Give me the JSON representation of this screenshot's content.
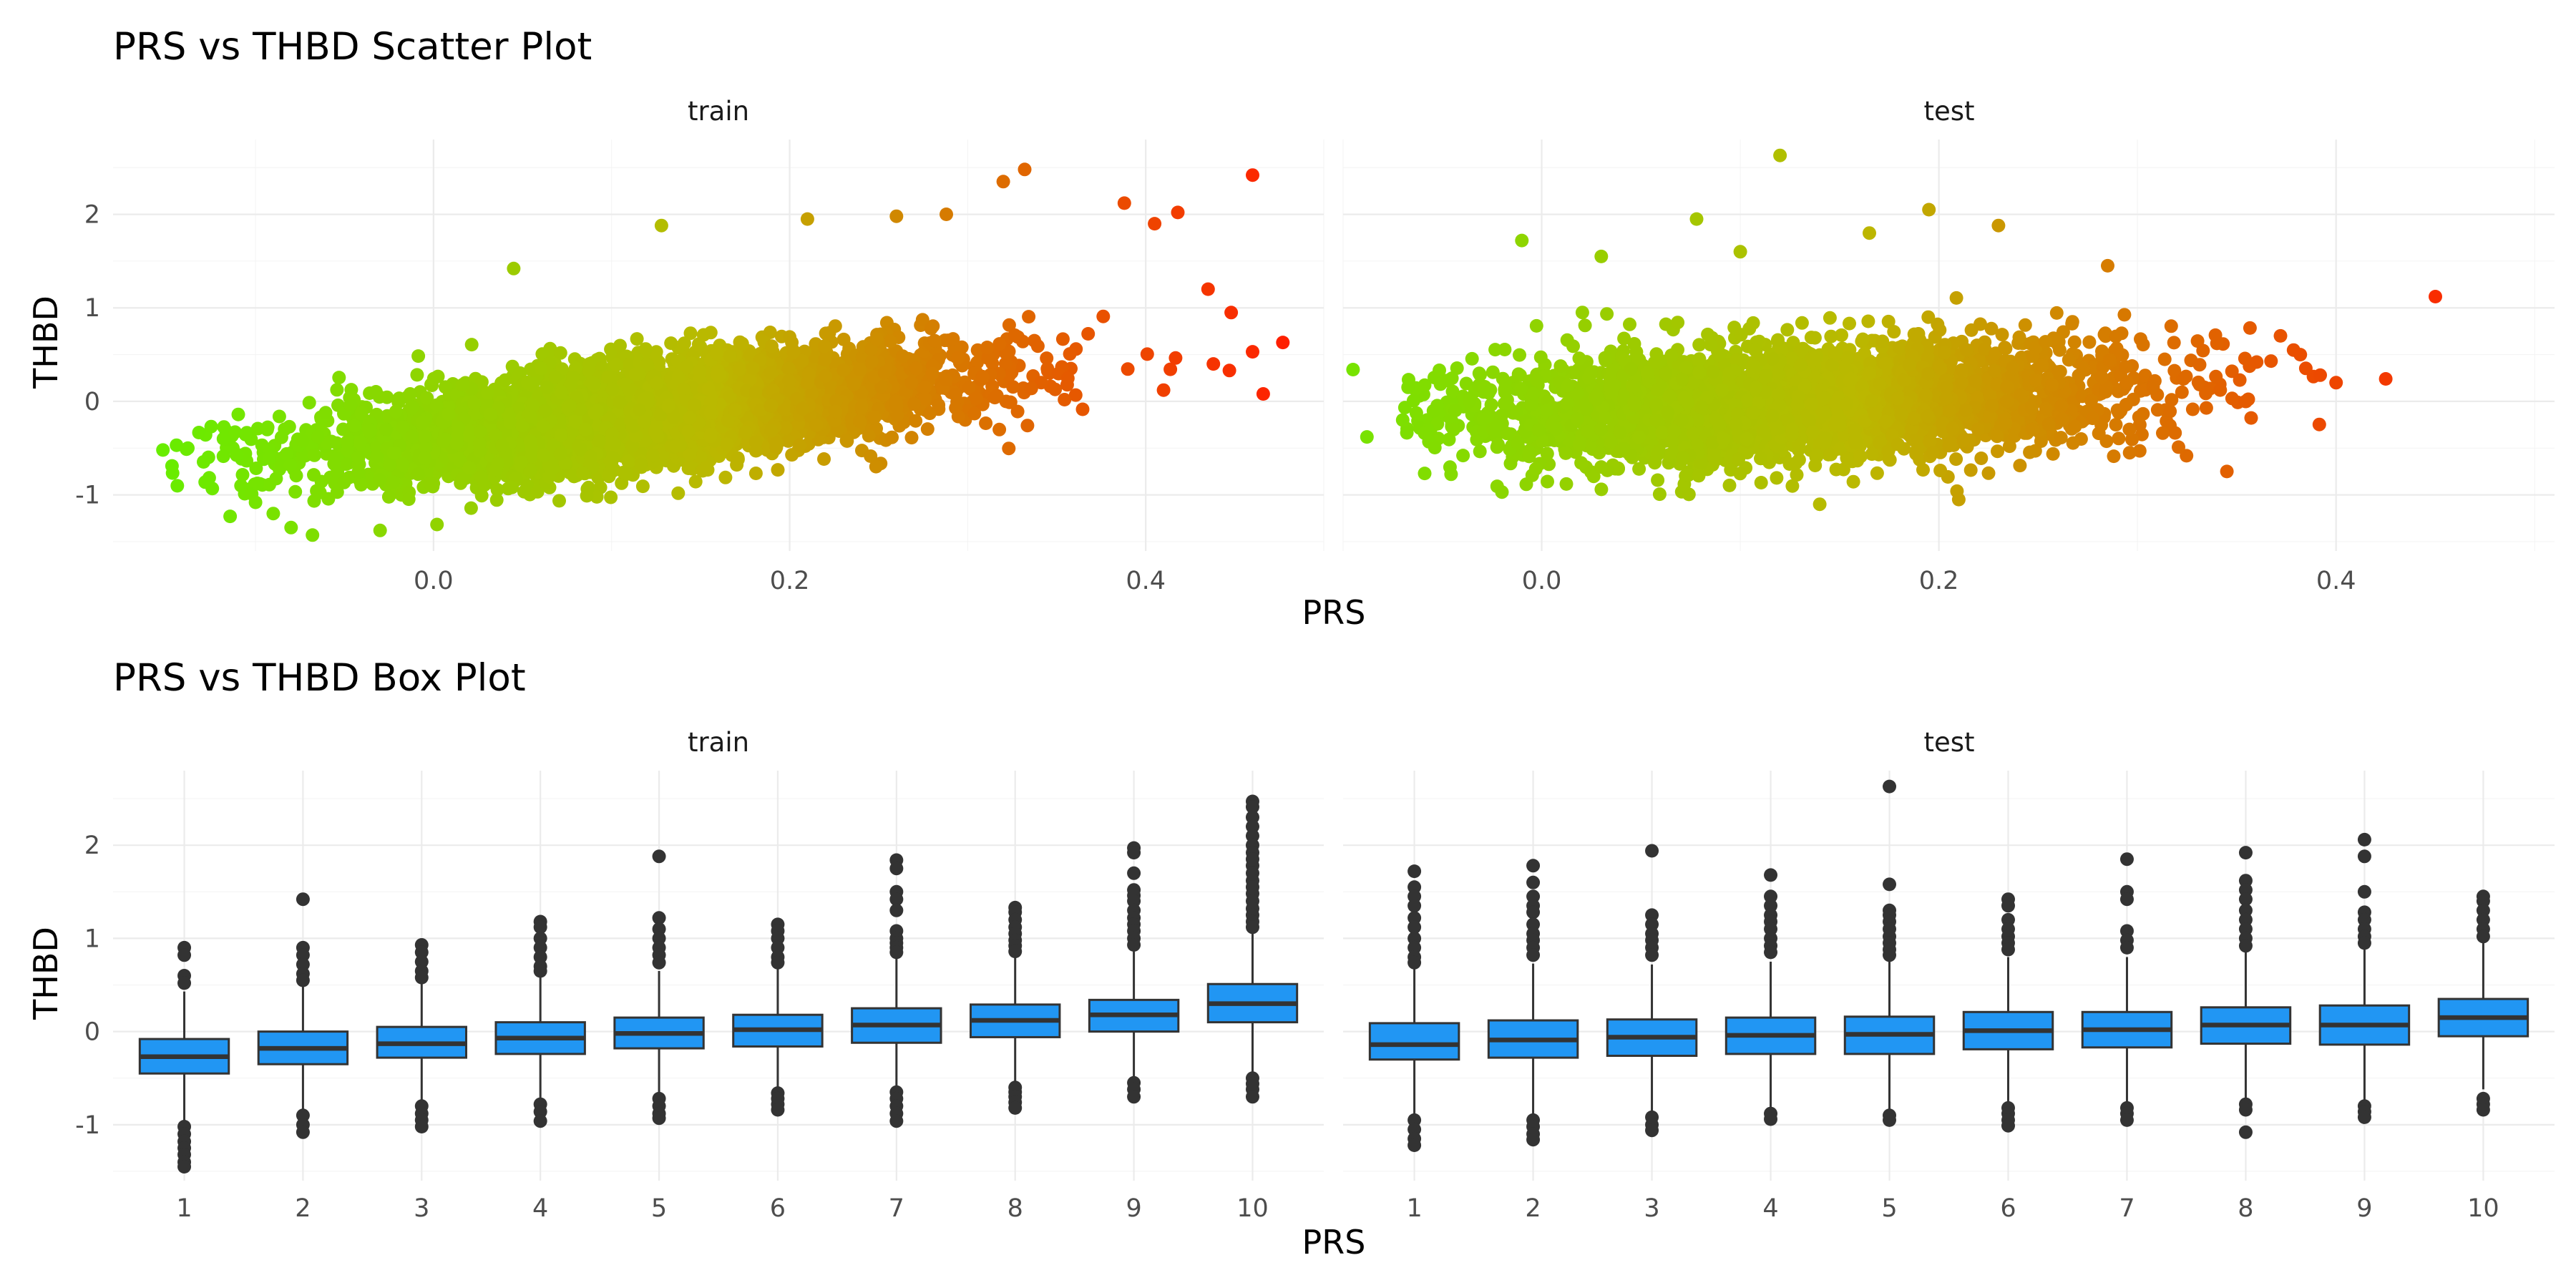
{
  "chart_data": [
    {
      "type": "scatter",
      "title": "PRS vs THBD Scatter Plot",
      "xlabel": "PRS",
      "ylabel": "THBD",
      "facets": [
        "train",
        "test"
      ],
      "facet_xlim": [
        [
          -0.18,
          0.5
        ],
        [
          -0.1,
          0.51
        ]
      ],
      "ylim": [
        -1.6,
        2.8
      ],
      "x_ticks": [
        0.0,
        0.2,
        0.4
      ],
      "x_tick_labels": [
        "0.0",
        "0.2",
        "0.4"
      ],
      "y_ticks": [
        -1,
        0,
        1,
        2
      ],
      "y_tick_labels": [
        "-1",
        "0",
        "1",
        "2"
      ],
      "color_scale": {
        "low": "#66ee00",
        "mid": "#bbb800",
        "high": "#ff1f00",
        "mapped_to": "PRS"
      },
      "grid": true,
      "legend": "none",
      "series": [
        {
          "name": "train",
          "bulk": {
            "x_mean": 0.12,
            "x_sd": 0.085,
            "slope": 2.1,
            "intercept": -0.38,
            "resid_sd": 0.26,
            "n": 5200
          },
          "outliers": [
            {
              "x": -0.152,
              "y": -0.52
            },
            {
              "x": -0.138,
              "y": -0.5
            },
            {
              "x": -0.118,
              "y": -0.4
            },
            {
              "x": -0.1,
              "y": -1.08
            },
            {
              "x": -0.09,
              "y": -1.2
            },
            {
              "x": -0.08,
              "y": -1.35
            },
            {
              "x": -0.068,
              "y": -1.43
            },
            {
              "x": -0.03,
              "y": -1.38
            },
            {
              "x": 0.045,
              "y": 1.42
            },
            {
              "x": 0.128,
              "y": 1.88
            },
            {
              "x": 0.21,
              "y": 1.95
            },
            {
              "x": 0.26,
              "y": 1.98
            },
            {
              "x": 0.288,
              "y": 2.0
            },
            {
              "x": 0.32,
              "y": 2.35
            },
            {
              "x": 0.332,
              "y": 2.48
            },
            {
              "x": 0.388,
              "y": 2.12
            },
            {
              "x": 0.405,
              "y": 1.9
            },
            {
              "x": 0.418,
              "y": 2.02
            },
            {
              "x": 0.435,
              "y": 1.2
            },
            {
              "x": 0.46,
              "y": 2.42
            },
            {
              "x": 0.448,
              "y": 0.95
            },
            {
              "x": 0.438,
              "y": 0.4
            },
            {
              "x": 0.447,
              "y": 0.33
            },
            {
              "x": 0.46,
              "y": 0.53
            },
            {
              "x": 0.466,
              "y": 0.08
            },
            {
              "x": 0.477,
              "y": 0.63
            },
            {
              "x": 0.41,
              "y": 0.12
            }
          ]
        },
        {
          "name": "test",
          "bulk": {
            "x_mean": 0.13,
            "x_sd": 0.08,
            "slope": 0.9,
            "intercept": -0.12,
            "resid_sd": 0.3,
            "n": 3400
          },
          "outliers": [
            {
              "x": -0.095,
              "y": 0.34
            },
            {
              "x": -0.088,
              "y": -0.38
            },
            {
              "x": -0.07,
              "y": -0.2
            },
            {
              "x": -0.02,
              "y": -0.97
            },
            {
              "x": -0.01,
              "y": 1.72
            },
            {
              "x": 0.03,
              "y": 1.55
            },
            {
              "x": 0.078,
              "y": 1.95
            },
            {
              "x": 0.1,
              "y": 1.6
            },
            {
              "x": 0.12,
              "y": 2.63
            },
            {
              "x": 0.14,
              "y": -1.1
            },
            {
              "x": 0.165,
              "y": 1.8
            },
            {
              "x": 0.195,
              "y": 2.05
            },
            {
              "x": 0.23,
              "y": 1.88
            },
            {
              "x": 0.285,
              "y": 1.45
            },
            {
              "x": 0.34,
              "y": 0.62
            },
            {
              "x": 0.345,
              "y": -0.75
            },
            {
              "x": 0.36,
              "y": 0.42
            },
            {
              "x": 0.372,
              "y": 0.7
            },
            {
              "x": 0.382,
              "y": 0.5
            },
            {
              "x": 0.392,
              "y": 0.28
            },
            {
              "x": 0.4,
              "y": 0.2
            },
            {
              "x": 0.425,
              "y": 0.24
            },
            {
              "x": 0.45,
              "y": 1.12
            },
            {
              "x": 0.21,
              "y": -1.05
            }
          ]
        }
      ]
    },
    {
      "type": "box",
      "title": "PRS vs THBD Box Plot",
      "xlabel": "PRS",
      "ylabel": "THBD",
      "facets": [
        "train",
        "test"
      ],
      "categories": [
        "1",
        "2",
        "3",
        "4",
        "5",
        "6",
        "7",
        "8",
        "9",
        "10"
      ],
      "ylim": [
        -1.6,
        2.8
      ],
      "y_ticks": [
        -1,
        0,
        1,
        2
      ],
      "y_tick_labels": [
        "-1",
        "0",
        "1",
        "2"
      ],
      "fill_color": "#2196f3",
      "grid": true,
      "series": [
        {
          "name": "train",
          "boxes": [
            {
              "q1": -0.45,
              "median": -0.27,
              "q3": -0.08,
              "low": -0.98,
              "high": 0.43,
              "outliers": [
                0.9,
                0.82,
                0.6,
                0.52,
                -1.02,
                -1.1,
                -1.18,
                -1.25,
                -1.32,
                -1.4,
                -1.45
              ]
            },
            {
              "q1": -0.35,
              "median": -0.18,
              "q3": 0.0,
              "low": -0.85,
              "high": 0.5,
              "outliers": [
                1.42,
                0.9,
                0.82,
                0.72,
                0.62,
                0.55,
                -0.9,
                -1.0,
                -1.08
              ]
            },
            {
              "q1": -0.28,
              "median": -0.13,
              "q3": 0.05,
              "low": -0.75,
              "high": 0.55,
              "outliers": [
                0.93,
                0.85,
                0.75,
                0.65,
                0.58,
                -0.8,
                -0.88,
                -0.95,
                -1.02
              ]
            },
            {
              "q1": -0.24,
              "median": -0.07,
              "q3": 0.1,
              "low": -0.74,
              "high": 0.6,
              "outliers": [
                1.18,
                1.12,
                1.0,
                0.9,
                0.8,
                0.7,
                0.65,
                -0.78,
                -0.86,
                -0.96
              ]
            },
            {
              "q1": -0.18,
              "median": -0.02,
              "q3": 0.15,
              "low": -0.68,
              "high": 0.65,
              "outliers": [
                1.88,
                1.22,
                1.1,
                1.0,
                0.9,
                0.82,
                0.74,
                -0.72,
                -0.8,
                -0.88,
                -0.93
              ]
            },
            {
              "q1": -0.16,
              "median": 0.02,
              "q3": 0.18,
              "low": -0.62,
              "high": 0.68,
              "outliers": [
                1.15,
                1.08,
                1.0,
                0.9,
                0.8,
                0.74,
                -0.66,
                -0.72,
                -0.78,
                -0.84
              ]
            },
            {
              "q1": -0.12,
              "median": 0.07,
              "q3": 0.25,
              "low": -0.6,
              "high": 0.78,
              "outliers": [
                1.84,
                1.75,
                1.5,
                1.42,
                1.3,
                1.08,
                1.0,
                0.95,
                0.9,
                0.85,
                -0.65,
                -0.72,
                -0.8,
                -0.88,
                -0.96
              ]
            },
            {
              "q1": -0.06,
              "median": 0.12,
              "q3": 0.29,
              "low": -0.55,
              "high": 0.8,
              "outliers": [
                1.33,
                1.28,
                1.2,
                1.12,
                1.05,
                0.98,
                0.92,
                0.86,
                -0.6,
                -0.65,
                -0.7,
                -0.76,
                -0.82
              ]
            },
            {
              "q1": 0.0,
              "median": 0.18,
              "q3": 0.34,
              "low": -0.5,
              "high": 0.86,
              "outliers": [
                1.97,
                1.92,
                1.7,
                1.52,
                1.46,
                1.4,
                1.3,
                1.22,
                1.15,
                1.08,
                1.0,
                0.93,
                -0.55,
                -0.62,
                -0.7
              ]
            },
            {
              "q1": 0.1,
              "median": 0.3,
              "q3": 0.51,
              "low": -0.45,
              "high": 1.06,
              "outliers": [
                2.47,
                2.41,
                2.3,
                2.2,
                2.1,
                2.0,
                1.92,
                1.85,
                1.78,
                1.7,
                1.62,
                1.55,
                1.48,
                1.4,
                1.32,
                1.25,
                1.18,
                1.12,
                -0.5,
                -0.56,
                -0.62,
                -0.7
              ]
            }
          ]
        },
        {
          "name": "test",
          "boxes": [
            {
              "q1": -0.3,
              "median": -0.14,
              "q3": 0.09,
              "low": -0.88,
              "high": 0.68,
              "outliers": [
                1.72,
                1.55,
                1.45,
                1.35,
                1.22,
                1.12,
                1.0,
                0.9,
                0.8,
                0.74,
                -0.95,
                -1.05,
                -1.15,
                -1.22
              ]
            },
            {
              "q1": -0.28,
              "median": -0.09,
              "q3": 0.12,
              "low": -0.88,
              "high": 0.73,
              "outliers": [
                1.78,
                1.6,
                1.45,
                1.35,
                1.28,
                1.15,
                1.05,
                0.98,
                0.9,
                0.82,
                -0.95,
                -1.02,
                -1.1,
                -1.16
              ]
            },
            {
              "q1": -0.26,
              "median": -0.06,
              "q3": 0.13,
              "low": -0.86,
              "high": 0.72,
              "outliers": [
                1.94,
                1.25,
                1.15,
                1.05,
                0.98,
                0.9,
                0.82,
                -0.92,
                -1.0,
                -1.06
              ]
            },
            {
              "q1": -0.24,
              "median": -0.04,
              "q3": 0.15,
              "low": -0.84,
              "high": 0.75,
              "outliers": [
                1.68,
                1.45,
                1.35,
                1.25,
                1.18,
                1.1,
                1.0,
                0.92,
                0.85,
                -0.88,
                -0.94
              ]
            },
            {
              "q1": -0.24,
              "median": -0.03,
              "q3": 0.16,
              "low": -0.85,
              "high": 0.76,
              "outliers": [
                2.63,
                1.58,
                1.3,
                1.25,
                1.18,
                1.1,
                1.02,
                0.95,
                0.88,
                0.82,
                -0.9,
                -0.95
              ]
            },
            {
              "q1": -0.19,
              "median": 0.01,
              "q3": 0.21,
              "low": -0.78,
              "high": 0.8,
              "outliers": [
                1.42,
                1.35,
                1.2,
                1.1,
                1.02,
                0.95,
                0.88,
                -0.82,
                -0.88,
                -0.95,
                -1.01
              ]
            },
            {
              "q1": -0.17,
              "median": 0.02,
              "q3": 0.21,
              "low": -0.76,
              "high": 0.8,
              "outliers": [
                1.85,
                1.5,
                1.42,
                1.08,
                0.98,
                0.9,
                -0.82,
                -0.88,
                -0.95
              ]
            },
            {
              "q1": -0.13,
              "median": 0.07,
              "q3": 0.26,
              "low": -0.72,
              "high": 0.85,
              "outliers": [
                1.92,
                1.62,
                1.52,
                1.42,
                1.3,
                1.2,
                1.1,
                1.0,
                0.92,
                -0.78,
                -0.84,
                -1.08
              ]
            },
            {
              "q1": -0.14,
              "median": 0.07,
              "q3": 0.28,
              "low": -0.74,
              "high": 0.88,
              "outliers": [
                2.06,
                1.88,
                1.5,
                1.28,
                1.2,
                1.1,
                1.02,
                0.95,
                -0.8,
                -0.86,
                -0.92
              ]
            },
            {
              "q1": -0.05,
              "median": 0.15,
              "q3": 0.35,
              "low": -0.62,
              "high": 0.95,
              "outliers": [
                1.45,
                1.4,
                1.3,
                1.2,
                1.1,
                1.02,
                -0.72,
                -0.78,
                -0.84
              ]
            }
          ]
        }
      ]
    }
  ]
}
